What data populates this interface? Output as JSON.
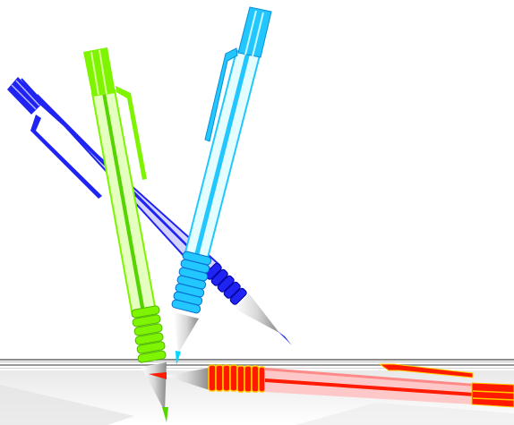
{
  "scene": {
    "background": "#ffffff",
    "shelf": {
      "edge_colors": [
        "#7f7f7f",
        "#bdbdbd",
        "#e6e6e6"
      ],
      "shade": "#dcdcdc"
    }
  },
  "pens": [
    {
      "id": "blue",
      "body": "#1f24f2",
      "stripe": "#c6c6ff",
      "tip": "#1f24f2",
      "icon": "blue-pen-icon"
    },
    {
      "id": "green",
      "body": "#7ff400",
      "stripe": "#d9ff9e",
      "tip": "#55d400",
      "icon": "green-pen-icon"
    },
    {
      "id": "cyan",
      "body": "#22c7ff",
      "stripe": "#d9fbff",
      "tip": "#00d8ff",
      "icon": "cyan-pen-icon"
    },
    {
      "id": "red",
      "body": "#ff1a00",
      "stripe": "#ffb0b0",
      "tip": "#ff1a00",
      "icon": "red-pen-icon"
    }
  ]
}
